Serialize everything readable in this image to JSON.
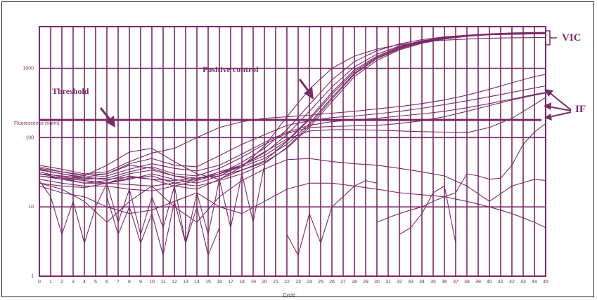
{
  "chart_data": {
    "type": "line",
    "xlabel": "Cycle",
    "ylabel": "Fluorescence (norm)",
    "x": [
      0,
      1,
      2,
      3,
      4,
      5,
      6,
      7,
      8,
      9,
      10,
      11,
      12,
      13,
      14,
      15,
      16,
      17,
      18,
      19,
      20,
      21,
      22,
      23,
      24,
      25,
      26,
      27,
      28,
      29,
      30,
      31,
      32,
      33,
      34,
      35,
      36,
      37,
      38,
      39,
      40,
      41,
      42,
      43,
      44,
      45
    ],
    "x_ticks": [
      "0",
      "1",
      "2",
      "3",
      "4",
      "5",
      "6",
      "7",
      "8",
      "9",
      "10",
      "11",
      "12",
      "13",
      "14",
      "15",
      "16",
      "17",
      "18",
      "19",
      "20",
      "21",
      "22",
      "23",
      "24",
      "25",
      "26",
      "27",
      "28",
      "29",
      "30",
      "31",
      "32",
      "33",
      "34",
      "35",
      "36",
      "37",
      "38",
      "39",
      "40",
      "41",
      "42",
      "43",
      "44",
      "45"
    ],
    "y_scale": "log",
    "ylim": [
      1,
      4000
    ],
    "y_ticks": [
      {
        "value": 1,
        "label": "1"
      },
      {
        "value": 10,
        "label": "10"
      },
      {
        "value": 100,
        "label": "100"
      },
      {
        "value": 1000,
        "label": "1000"
      }
    ],
    "threshold": 180,
    "annotations": {
      "threshold": "Threshold",
      "positive_control": "Positive control",
      "vic": "VIC",
      "if": "IF"
    },
    "grid": true,
    "line_color": "#7a2b66",
    "series": [
      {
        "x": [
          0,
          2,
          4,
          6,
          8,
          10,
          12,
          14,
          16,
          18,
          20,
          22,
          24,
          26,
          28,
          30,
          32,
          34,
          36,
          38,
          40,
          42,
          44,
          45
        ],
        "values": [
          38,
          32,
          28,
          40,
          62,
          70,
          45,
          30,
          25,
          34,
          46,
          88,
          180,
          420,
          900,
          1450,
          2000,
          2450,
          2750,
          3000,
          3150,
          3250,
          3300,
          3320
        ]
      },
      {
        "x": [
          0,
          2,
          4,
          6,
          8,
          10,
          12,
          14,
          16,
          18,
          20,
          22,
          24,
          26,
          28,
          30,
          32,
          34,
          36,
          38,
          40,
          42,
          44,
          45
        ],
        "values": [
          35,
          30,
          27,
          30,
          40,
          36,
          28,
          26,
          28,
          34,
          44,
          70,
          140,
          330,
          760,
          1300,
          1850,
          2300,
          2650,
          2900,
          3050,
          3150,
          3200,
          3220
        ]
      },
      {
        "x": [
          0,
          2,
          4,
          6,
          8,
          10,
          12,
          14,
          16,
          18,
          20,
          22,
          24,
          26,
          28,
          30,
          32,
          34,
          36,
          38,
          40,
          42,
          44,
          45
        ],
        "values": [
          30,
          28,
          26,
          25,
          27,
          25,
          24,
          26,
          30,
          38,
          50,
          80,
          160,
          380,
          850,
          1400,
          1950,
          2400,
          2750,
          2950,
          3100,
          3180,
          3230,
          3250
        ]
      },
      {
        "x": [
          0,
          2,
          4,
          6,
          8,
          10,
          12,
          14,
          16,
          18,
          20,
          22,
          24,
          26,
          28,
          30,
          32,
          34,
          36,
          38,
          40,
          42,
          44,
          45
        ],
        "values": [
          32,
          27,
          24,
          22,
          21,
          20,
          22,
          25,
          32,
          40,
          55,
          90,
          190,
          450,
          950,
          1500,
          2050,
          2500,
          2800,
          3000,
          3100,
          3150,
          3180,
          3200
        ]
      },
      {
        "x": [
          0,
          2,
          4,
          6,
          8,
          10,
          12,
          14,
          16,
          18,
          20,
          22,
          24,
          26,
          28,
          30,
          32,
          34,
          36,
          38,
          40,
          42,
          44,
          45
        ],
        "values": [
          28,
          25,
          22,
          22,
          26,
          28,
          22,
          20,
          24,
          30,
          42,
          72,
          150,
          360,
          820,
          1380,
          1900,
          2350,
          2700,
          2920,
          3050,
          3120,
          3160,
          3180
        ]
      },
      {
        "x": [
          0,
          2,
          4,
          6,
          8,
          10,
          12,
          14,
          16,
          18,
          20,
          22,
          24,
          26,
          28,
          30,
          32,
          34,
          36,
          38,
          40,
          42,
          44,
          45
        ],
        "values": [
          25,
          22,
          20,
          20,
          18,
          17,
          20,
          24,
          30,
          40,
          60,
          110,
          240,
          540,
          1050,
          1600,
          2100,
          2500,
          2780,
          2950,
          3050,
          3100,
          3130,
          3150
        ]
      },
      {
        "x": [
          0,
          2,
          4,
          6,
          8,
          10,
          12,
          14,
          16,
          18,
          20,
          22,
          24,
          26,
          28,
          30,
          32,
          34,
          36,
          38,
          40,
          42,
          44,
          45
        ],
        "values": [
          30,
          26,
          22,
          24,
          30,
          34,
          28,
          24,
          30,
          44,
          70,
          130,
          300,
          680,
          1250,
          1800,
          2250,
          2600,
          2850,
          3000,
          3080,
          3120,
          3150,
          3160
        ]
      },
      {
        "x": [
          0,
          2,
          4,
          6,
          8,
          10,
          12,
          14,
          16,
          18,
          20,
          22,
          24,
          26,
          28,
          30,
          32,
          34,
          36,
          38,
          40,
          42,
          44,
          45
        ],
        "values": [
          22,
          20,
          19,
          22,
          28,
          25,
          20,
          18,
          25,
          38,
          75,
          200,
          500,
          1000,
          1500,
          1900,
          2200,
          2400,
          2550,
          2650,
          2720,
          2760,
          2780,
          2790
        ]
      },
      {
        "x": [
          0,
          2,
          4,
          6,
          8,
          10,
          12,
          14,
          16,
          18,
          20,
          22,
          24,
          26,
          28,
          30,
          32,
          34,
          36,
          38,
          40,
          42,
          44,
          45
        ],
        "values": [
          40,
          35,
          30,
          32,
          45,
          60,
          70,
          100,
          140,
          170,
          190,
          200,
          210,
          225,
          240,
          260,
          280,
          310,
          350,
          410,
          500,
          620,
          760,
          820
        ]
      },
      {
        "x": [
          0,
          2,
          4,
          6,
          8,
          10,
          12,
          14,
          16,
          18,
          20,
          22,
          24,
          26,
          28,
          30,
          32,
          34,
          36,
          38,
          40,
          42,
          44,
          45
        ],
        "values": [
          36,
          32,
          29,
          30,
          42,
          50,
          40,
          38,
          55,
          80,
          110,
          150,
          175,
          195,
          205,
          220,
          240,
          265,
          300,
          340,
          390,
          450,
          520,
          560
        ]
      },
      {
        "x": [
          0,
          2,
          4,
          6,
          8,
          10,
          12,
          14,
          16,
          18,
          20,
          22,
          24,
          26,
          28,
          30,
          32,
          34,
          36,
          38,
          40,
          42,
          44,
          45
        ],
        "values": [
          34,
          30,
          26,
          28,
          35,
          42,
          36,
          33,
          40,
          58,
          85,
          120,
          150,
          170,
          180,
          190,
          205,
          220,
          240,
          270,
          310,
          360,
          420,
          450
        ]
      },
      {
        "x": [
          0,
          2,
          4,
          6,
          8,
          10,
          12,
          14,
          16,
          18,
          20,
          22,
          24,
          26,
          28,
          30,
          32,
          34,
          36,
          38,
          40,
          42,
          44,
          45
        ],
        "values": [
          30,
          28,
          25,
          26,
          32,
          38,
          30,
          28,
          36,
          52,
          80,
          115,
          140,
          145,
          148,
          150,
          160,
          175,
          200,
          240,
          290,
          350,
          410,
          440
        ]
      },
      {
        "x": [
          0,
          2,
          4,
          6,
          8,
          10,
          12,
          14,
          16,
          18,
          20,
          22,
          24,
          26,
          28,
          30,
          32,
          34,
          36,
          38,
          40,
          42,
          44,
          45
        ],
        "values": [
          28,
          26,
          24,
          22,
          25,
          30,
          25,
          22,
          28,
          40,
          62,
          95,
          125,
          130,
          130,
          128,
          125,
          122,
          120,
          118,
          140,
          190,
          300,
          380
        ]
      },
      {
        "x": [
          0,
          1,
          2,
          3,
          4,
          5,
          6,
          7,
          8,
          9,
          10,
          11,
          12,
          13,
          14,
          15,
          16,
          17,
          18,
          19,
          20
        ],
        "values": [
          24,
          14,
          4,
          12,
          3,
          10,
          22,
          6,
          18,
          4,
          14,
          5,
          20,
          3,
          16,
          4,
          25,
          5,
          30,
          6,
          40
        ]
      },
      {
        "x": [
          0,
          2,
          4,
          6,
          8,
          10,
          12,
          14,
          16,
          18,
          20,
          22,
          24,
          26,
          28,
          30,
          32,
          34,
          36,
          38,
          40,
          42,
          44,
          45
        ],
        "values": [
          22,
          18,
          12,
          6,
          12,
          20,
          10,
          6,
          14,
          24,
          35,
          48,
          50,
          45,
          42,
          40,
          36,
          32,
          28,
          20,
          12,
          20,
          25,
          24
        ]
      },
      {
        "x": [
          0,
          2,
          4,
          6,
          8,
          10,
          12,
          14,
          16,
          18,
          20,
          22,
          24,
          26,
          28,
          30,
          32,
          34,
          36,
          38,
          40,
          42,
          44,
          45
        ],
        "values": [
          20,
          16,
          14,
          10,
          8,
          9,
          12,
          16,
          10,
          8,
          12,
          18,
          22,
          22,
          20,
          18,
          16,
          15,
          14,
          12,
          10,
          8,
          6,
          5
        ]
      },
      {
        "x": [
          6,
          7,
          8,
          9,
          10,
          11,
          12,
          13,
          14,
          15,
          16
        ],
        "values": [
          14,
          4,
          10,
          3,
          8,
          2,
          12,
          3,
          10,
          2,
          5
        ]
      },
      {
        "x": [
          22,
          23,
          24,
          25,
          26,
          27,
          28,
          29,
          30
        ],
        "values": [
          4,
          2,
          8,
          3,
          10,
          14,
          20,
          24,
          22
        ]
      },
      {
        "x": [
          32,
          33,
          34,
          35,
          36,
          37
        ],
        "values": [
          4,
          5,
          8,
          16,
          20,
          3
        ]
      },
      {
        "x": [
          30,
          31,
          32,
          33,
          34,
          35,
          36,
          37,
          38,
          39,
          40,
          41,
          42,
          43,
          44,
          45
        ],
        "values": [
          6,
          7,
          8,
          9,
          10,
          12,
          14,
          16,
          30,
          28,
          25,
          26,
          40,
          80,
          120,
          160
        ]
      }
    ]
  }
}
